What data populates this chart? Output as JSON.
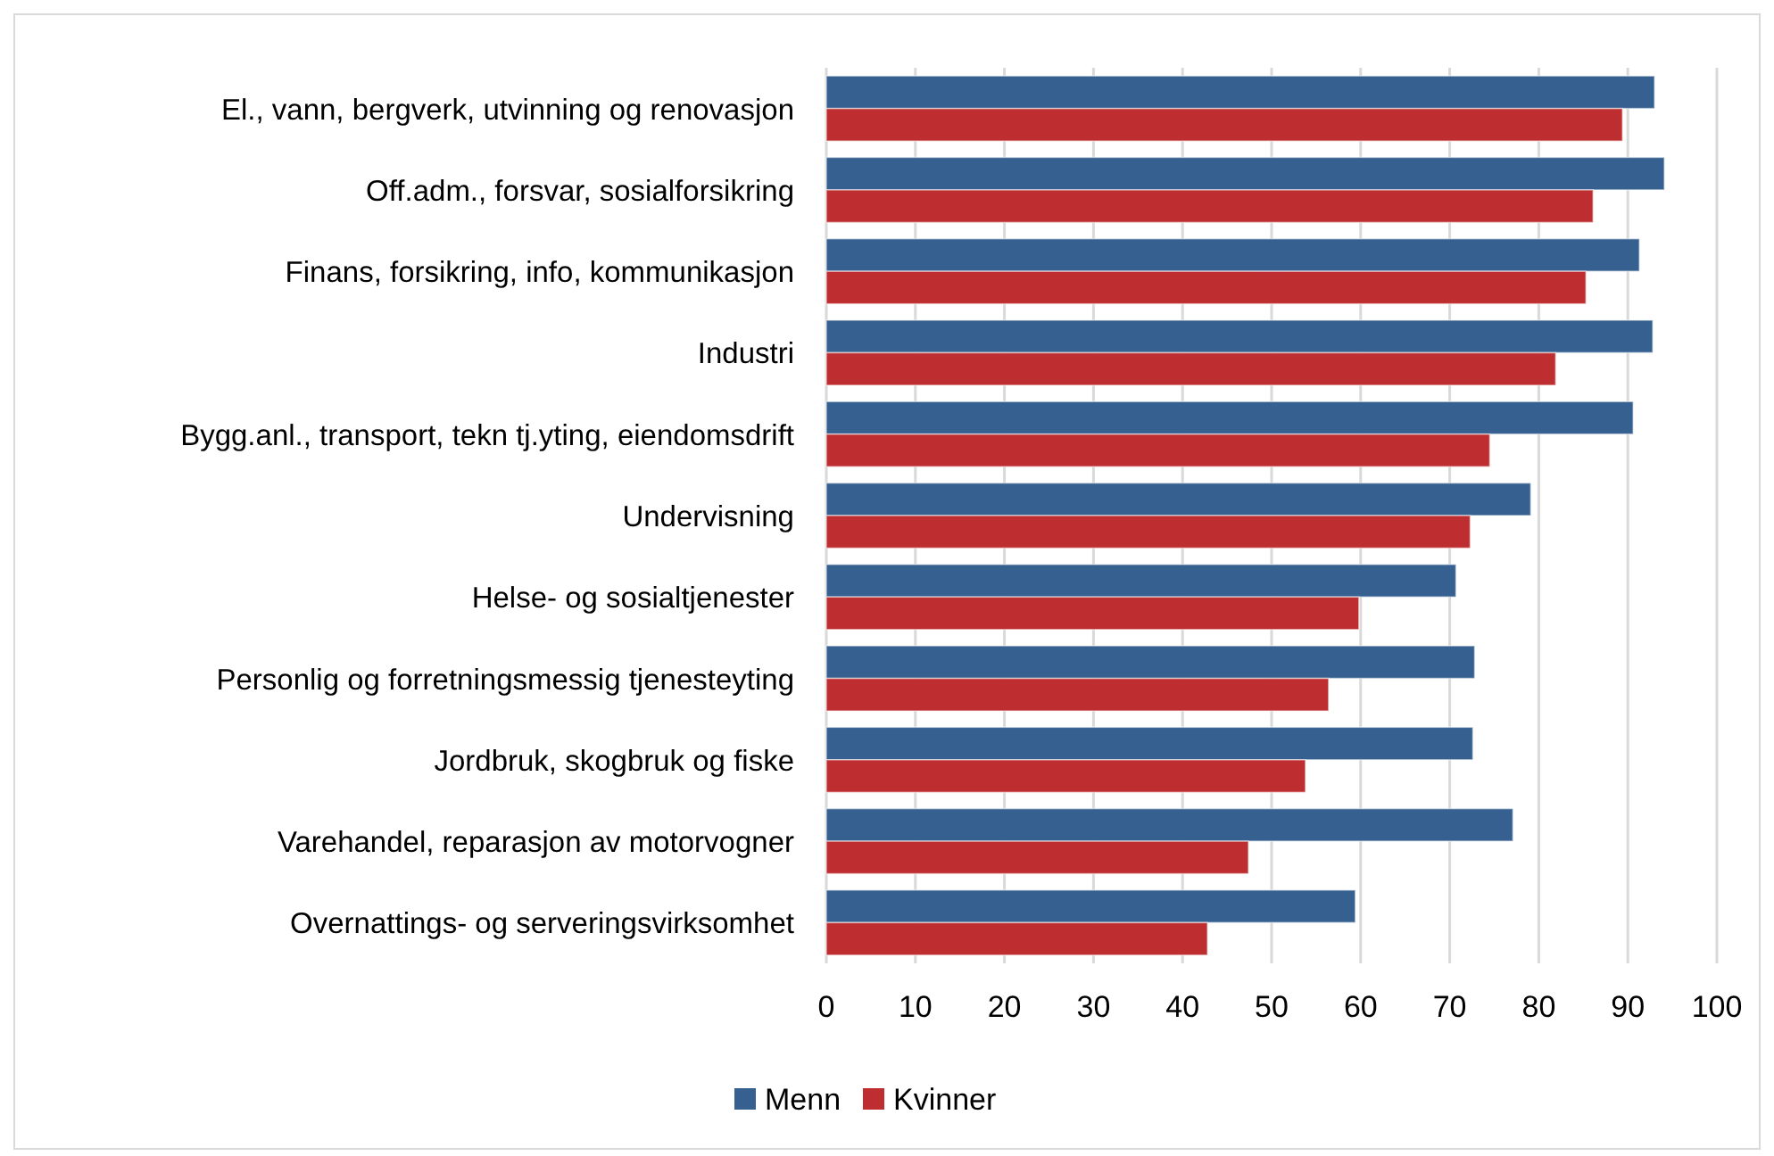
{
  "chart_data": {
    "type": "bar",
    "orientation": "horizontal",
    "categories": [
      "El., vann, bergverk, utvinning og renovasjon",
      "Off.adm., forsvar, sosialforsikring",
      "Finans, forsikring, info, kommunikasjon",
      "Industri",
      "Bygg.anl., transport, tekn tj.yting, eiendomsdrift",
      "Undervisning",
      "Helse- og sosialtjenester",
      "Personlig og forretningsmessig tjenesteyting",
      "Jordbruk, skogbruk og fiske",
      "Varehandel, reparasjon av motorvogner",
      "Overnattings- og serveringsvirksomhet"
    ],
    "series": [
      {
        "name": "Menn",
        "color": "#35608f",
        "values": [
          93.0,
          94.1,
          91.3,
          92.8,
          90.6,
          79.1,
          70.7,
          72.8,
          72.6,
          77.1,
          59.4
        ]
      },
      {
        "name": "Kvinner",
        "color": "#be2d2f",
        "values": [
          89.4,
          86.1,
          85.3,
          81.9,
          74.5,
          72.3,
          59.8,
          56.4,
          53.8,
          47.4,
          42.8
        ]
      }
    ],
    "xlim": [
      0,
      100
    ],
    "xticks": [
      0,
      10,
      20,
      30,
      40,
      50,
      60,
      70,
      80,
      90,
      100
    ],
    "grid": "x",
    "legend": "bottom"
  }
}
